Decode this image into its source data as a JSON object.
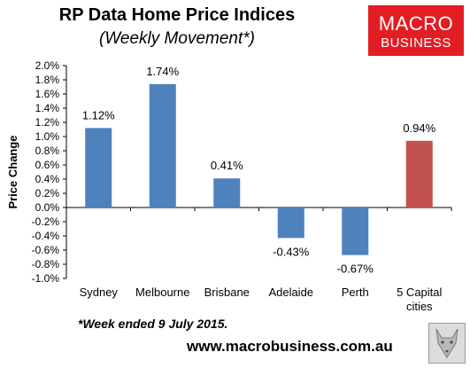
{
  "header": {
    "title": "RP Data Home Price Indices",
    "subtitle": "(Weekly Movement*)"
  },
  "logo": {
    "line1": "MACRO",
    "line2": "BUSINESS"
  },
  "footnote": "*Week ended 9 July 2015.",
  "website": "www.macrobusiness.com.au",
  "badge": {
    "icon": "wolf-icon"
  },
  "chart_data": {
    "type": "bar",
    "title": "RP Data Home Price Indices",
    "subtitle": "(Weekly Movement*)",
    "xlabel": "",
    "ylabel": "Price Change",
    "categories": [
      "Sydney",
      "Melbourne",
      "Brisbane",
      "Adelaide",
      "Perth",
      "5 Capital cities"
    ],
    "category_lines": [
      [
        "Sydney"
      ],
      [
        "Melbourne"
      ],
      [
        "Brisbane"
      ],
      [
        "Adelaide"
      ],
      [
        "Perth"
      ],
      [
        "5 Capital",
        "cities"
      ]
    ],
    "values": [
      1.12,
      1.74,
      0.41,
      -0.43,
      -0.67,
      0.94
    ],
    "data_labels": [
      "1.12%",
      "1.74%",
      "0.41%",
      "-0.43%",
      "-0.67%",
      "0.94%"
    ],
    "colors": [
      "#4f81bd",
      "#4f81bd",
      "#4f81bd",
      "#4f81bd",
      "#4f81bd",
      "#c0504d"
    ],
    "ylim": [
      -1.0,
      2.0
    ],
    "yticks": [
      2.0,
      1.8,
      1.6,
      1.4,
      1.2,
      1.0,
      0.8,
      0.6,
      0.4,
      0.2,
      0.0,
      -0.2,
      -0.4,
      -0.6,
      -0.8,
      -1.0
    ],
    "ytick_labels": [
      "2.0%",
      "1.8%",
      "1.6%",
      "1.4%",
      "1.2%",
      "1.0%",
      "0.8%",
      "0.6%",
      "0.4%",
      "0.2%",
      "0.0%",
      "-0.2%",
      "-0.4%",
      "-0.6%",
      "-0.8%",
      "-1.0%"
    ],
    "grid": false,
    "legend": "none"
  }
}
